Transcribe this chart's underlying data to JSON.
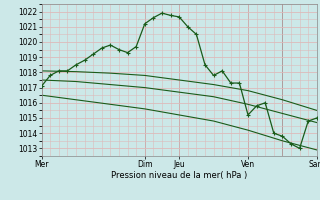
{
  "title": "",
  "xlabel": "Pression niveau de la mer( hPa )",
  "ylim": [
    1012.5,
    1022.5
  ],
  "yticks": [
    1013,
    1014,
    1015,
    1016,
    1017,
    1018,
    1019,
    1020,
    1021,
    1022
  ],
  "background_color": "#cce8e8",
  "grid_color_major": "#ddbaba",
  "grid_color_minor": "#ddbaba",
  "line_color": "#1a5c1a",
  "day_labels": [
    "Mer",
    "Dim",
    "Jeu",
    "Ven",
    "Sam"
  ],
  "day_positions": [
    0,
    36,
    48,
    72,
    96
  ],
  "vline_positions": [
    36,
    48,
    72,
    84
  ],
  "series1": {
    "x": [
      0,
      3,
      6,
      9,
      12,
      15,
      18,
      21,
      24,
      27,
      30,
      33,
      36,
      39,
      42,
      45,
      48,
      51,
      54,
      57,
      60,
      63,
      66,
      69,
      72,
      75,
      78,
      81,
      84,
      87,
      90,
      93,
      96
    ],
    "y": [
      1017.1,
      1017.8,
      1018.1,
      1018.1,
      1018.5,
      1018.8,
      1019.2,
      1019.6,
      1019.8,
      1019.5,
      1019.3,
      1019.7,
      1021.2,
      1021.6,
      1021.9,
      1021.75,
      1021.65,
      1021.0,
      1020.5,
      1018.5,
      1017.8,
      1018.1,
      1017.3,
      1017.3,
      1015.2,
      1015.8,
      1016.0,
      1014.0,
      1013.8,
      1013.3,
      1013.0,
      1014.8,
      1015.0
    ]
  },
  "series2": {
    "x": [
      0,
      12,
      24,
      36,
      48,
      60,
      72,
      84,
      96
    ],
    "y": [
      1018.1,
      1018.05,
      1017.95,
      1017.8,
      1017.5,
      1017.2,
      1016.8,
      1016.2,
      1015.5
    ]
  },
  "series3": {
    "x": [
      0,
      12,
      24,
      36,
      48,
      60,
      72,
      84,
      96
    ],
    "y": [
      1017.5,
      1017.4,
      1017.2,
      1017.0,
      1016.7,
      1016.4,
      1015.9,
      1015.3,
      1014.7
    ]
  },
  "series4": {
    "x": [
      0,
      12,
      24,
      36,
      48,
      60,
      72,
      84,
      96
    ],
    "y": [
      1016.5,
      1016.2,
      1015.9,
      1015.6,
      1015.2,
      1014.8,
      1014.2,
      1013.5,
      1012.9
    ]
  }
}
